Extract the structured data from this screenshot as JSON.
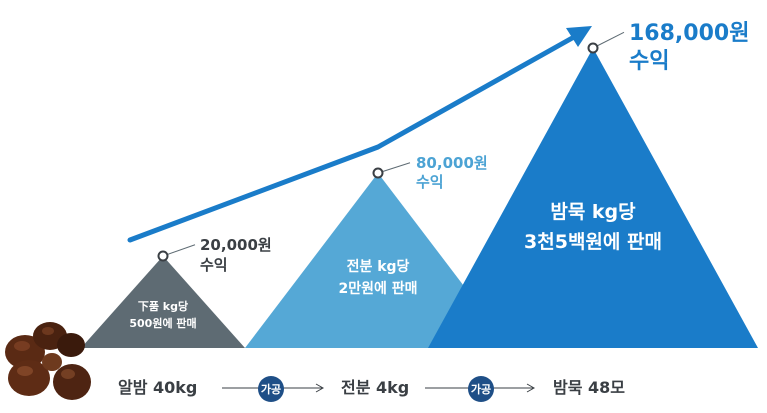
{
  "colors": {
    "tri1": "#5e6b73",
    "tri2": "#4ca3d4",
    "tri3": "#1a7cc9",
    "arrow": "#1a7cc9",
    "badge": "#1f4f87",
    "text_dark": "#3a3f44"
  },
  "chart_data": {
    "type": "area",
    "categories": [
      "알밤 40kg",
      "전분 4kg",
      "밤묵 48모"
    ],
    "values": [
      20000,
      80000,
      168000
    ],
    "unit": "원",
    "value_labels": [
      {
        "amount": "20,000원",
        "word": "수익"
      },
      {
        "amount": "80,000원",
        "word": "수익"
      },
      {
        "amount": "168,000원",
        "word": "수익"
      }
    ],
    "peak_captions": [
      [
        "下품 kg당",
        "500원에 판매"
      ],
      [
        "전분 kg당",
        "2만원에 판매"
      ],
      [
        "밤묵 kg당",
        "3천5백원에 판매"
      ]
    ],
    "process_badges": [
      "가공",
      "가공"
    ],
    "ylim": [
      0,
      180000
    ],
    "trend_arrow": true,
    "title": "",
    "xlabel": "",
    "ylabel": ""
  }
}
